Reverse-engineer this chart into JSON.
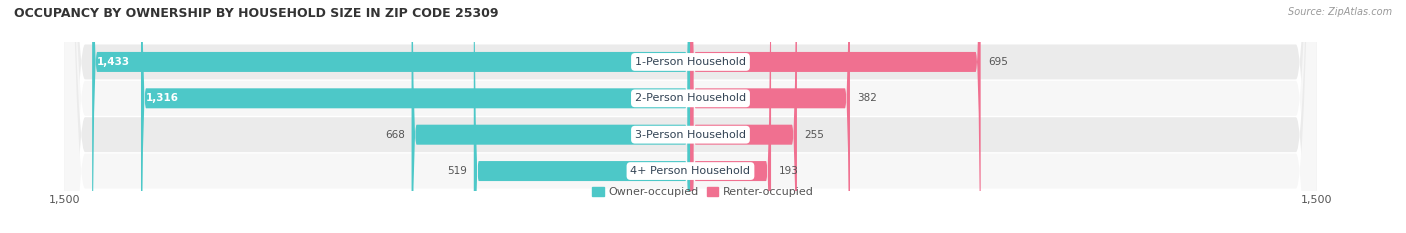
{
  "title": "OCCUPANCY BY OWNERSHIP BY HOUSEHOLD SIZE IN ZIP CODE 25309",
  "source": "Source: ZipAtlas.com",
  "categories": [
    "1-Person Household",
    "2-Person Household",
    "3-Person Household",
    "4+ Person Household"
  ],
  "owner_values": [
    1433,
    1316,
    668,
    519
  ],
  "renter_values": [
    695,
    382,
    255,
    193
  ],
  "owner_color": "#4dc8c8",
  "renter_color": "#f07090",
  "row_bg_color_odd": "#ebebeb",
  "row_bg_color_even": "#f7f7f7",
  "axis_max": 1500,
  "axis_min": -1500,
  "x_tick_labels": [
    "1,500",
    "1,500"
  ],
  "label_fontsize": 8,
  "title_fontsize": 9,
  "source_fontsize": 7,
  "legend_fontsize": 8,
  "value_fontsize": 7.5,
  "category_fontsize": 8,
  "background_color": "#ffffff",
  "owner_inside_threshold": 800,
  "category_label_color": "#334455"
}
